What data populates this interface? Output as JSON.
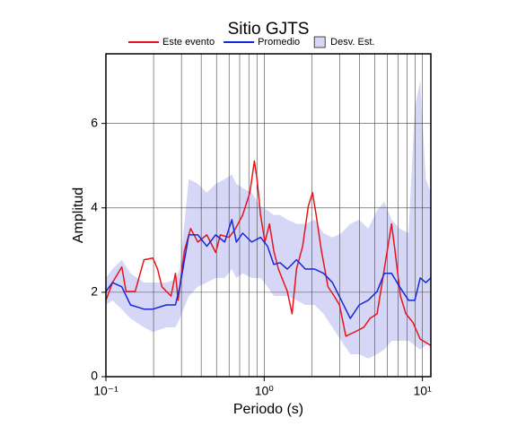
{
  "chart_data": {
    "type": "line",
    "title": "Sitio GJTS",
    "x_label": "Periodo (s)",
    "y_label": "Amplitud",
    "x_scale": "log",
    "xlim": [
      0.1,
      11.3
    ],
    "ylim": [
      0,
      7.65
    ],
    "xticks": [
      {
        "value": 0.1,
        "label": "10⁻¹"
      },
      {
        "value": 1,
        "label": "10⁰"
      },
      {
        "value": 10,
        "label": "10¹"
      }
    ],
    "xgrid": [
      0.2,
      0.3,
      0.4,
      0.5,
      0.6,
      0.7,
      0.8,
      0.9,
      1,
      2,
      3,
      4,
      5,
      6,
      7,
      8,
      9,
      10
    ],
    "yticks": [
      0,
      2,
      4,
      6
    ],
    "grid": true,
    "band": {
      "name": "Desv. Est.",
      "color": "#d6d6f7",
      "x": [
        0.1,
        0.11,
        0.126,
        0.143,
        0.174,
        0.198,
        0.241,
        0.275,
        0.293,
        0.334,
        0.381,
        0.434,
        0.494,
        0.563,
        0.625,
        0.667,
        0.731,
        0.833,
        0.949,
        1.05,
        1.15,
        1.26,
        1.4,
        1.6,
        1.82,
        2.08,
        2.37,
        2.7,
        3.07,
        3.5,
        3.99,
        4.54,
        5.17,
        5.74,
        6.38,
        7.17,
        8.17,
        8.95,
        9.68,
        10.5,
        11.3
      ],
      "upper": [
        2.34,
        2.55,
        2.77,
        2.45,
        2.23,
        2.23,
        2.23,
        2.3,
        2.55,
        4.68,
        4.57,
        4.36,
        4.57,
        4.68,
        4.79,
        4.57,
        4.47,
        4.36,
        4.04,
        3.94,
        3.83,
        3.83,
        3.72,
        3.62,
        3.62,
        3.72,
        3.4,
        3.3,
        3.4,
        3.62,
        3.72,
        3.51,
        3.94,
        4.15,
        3.72,
        3.51,
        3.4,
        6.38,
        7.02,
        4.68,
        4.36
      ],
      "lower": [
        1.7,
        1.81,
        1.6,
        1.38,
        1.17,
        1.06,
        1.17,
        1.17,
        1.38,
        1.91,
        2.13,
        2.23,
        2.34,
        2.34,
        2.55,
        2.34,
        2.45,
        2.34,
        2.34,
        2.13,
        1.91,
        1.91,
        1.91,
        1.81,
        1.7,
        1.7,
        1.49,
        1.17,
        0.85,
        0.53,
        0.53,
        0.43,
        0.53,
        0.64,
        0.85,
        0.85,
        0.85,
        0.74,
        0.64,
        0.74,
        0.85
      ]
    },
    "series": [
      {
        "name": "Este evento",
        "color": "#e8141c",
        "x": [
          0.1,
          0.11,
          0.126,
          0.134,
          0.153,
          0.174,
          0.198,
          0.212,
          0.226,
          0.241,
          0.258,
          0.275,
          0.286,
          0.313,
          0.343,
          0.381,
          0.434,
          0.494,
          0.528,
          0.601,
          0.659,
          0.731,
          0.812,
          0.867,
          0.901,
          0.949,
          1.01,
          1.08,
          1.15,
          1.23,
          1.4,
          1.5,
          1.6,
          1.75,
          1.9,
          2.02,
          2.13,
          2.3,
          2.53,
          2.77,
          2.99,
          3.28,
          3.74,
          4.26,
          4.66,
          5.17,
          5.74,
          6.38,
          6.71,
          7.26,
          7.86,
          8.72,
          9.68,
          10.5,
          11.3
        ],
        "values": [
          1.81,
          2.23,
          2.6,
          2.02,
          2.02,
          2.77,
          2.81,
          2.55,
          2.13,
          2.02,
          1.91,
          2.45,
          1.81,
          2.98,
          3.51,
          3.19,
          3.36,
          2.94,
          3.36,
          3.3,
          3.51,
          3.83,
          4.36,
          5.11,
          4.68,
          3.83,
          3.19,
          3.62,
          2.98,
          2.55,
          2.02,
          1.49,
          2.55,
          3.09,
          4.04,
          4.36,
          3.83,
          2.98,
          2.13,
          1.91,
          1.7,
          0.96,
          1.06,
          1.17,
          1.38,
          1.49,
          2.55,
          3.62,
          2.98,
          1.91,
          1.49,
          1.28,
          0.89,
          0.81,
          0.74
        ]
      },
      {
        "name": "Promedio",
        "color": "#1428d8",
        "x": [
          0.1,
          0.11,
          0.126,
          0.143,
          0.174,
          0.198,
          0.241,
          0.275,
          0.293,
          0.334,
          0.381,
          0.434,
          0.494,
          0.563,
          0.625,
          0.667,
          0.731,
          0.833,
          0.949,
          1.05,
          1.15,
          1.26,
          1.4,
          1.6,
          1.82,
          2.08,
          2.37,
          2.7,
          3.07,
          3.5,
          3.99,
          4.54,
          5.17,
          5.74,
          6.38,
          7.17,
          8.17,
          8.95,
          9.68,
          10.5,
          11.3
        ],
        "values": [
          2.02,
          2.23,
          2.13,
          1.7,
          1.6,
          1.6,
          1.7,
          1.7,
          2.13,
          3.36,
          3.36,
          3.09,
          3.36,
          3.19,
          3.72,
          3.19,
          3.4,
          3.19,
          3.3,
          3.09,
          2.66,
          2.7,
          2.55,
          2.77,
          2.55,
          2.55,
          2.45,
          2.23,
          1.81,
          1.38,
          1.7,
          1.81,
          2.02,
          2.45,
          2.45,
          2.13,
          1.81,
          1.81,
          2.34,
          2.23,
          2.34
        ]
      }
    ]
  }
}
